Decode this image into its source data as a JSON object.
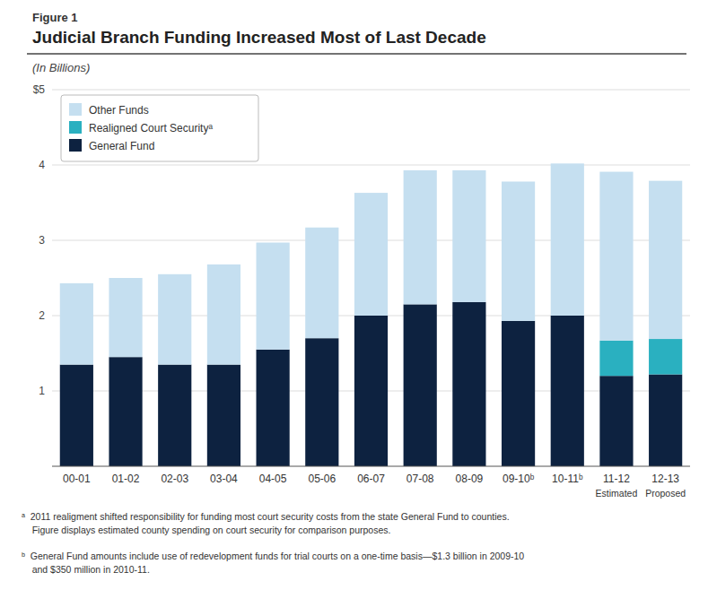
{
  "chart_data": {
    "type": "bar",
    "stacked": true,
    "fig_label": "Figure 1",
    "title": "Judicial Branch Funding Increased Most of Last Decade",
    "subtitle": "(In Billions)",
    "categories": [
      "00-01",
      "01-02",
      "02-03",
      "03-04",
      "04-05",
      "05-06",
      "06-07",
      "07-08",
      "08-09",
      "09-10ᵇ",
      "10-11ᵇ",
      "11-12",
      "12-13"
    ],
    "sublabels": [
      null,
      null,
      null,
      null,
      null,
      null,
      null,
      null,
      null,
      null,
      null,
      "Estimated",
      "Proposed"
    ],
    "series": [
      {
        "name": "General Fund",
        "color": "#0d2240",
        "values": [
          1.35,
          1.45,
          1.35,
          1.35,
          1.55,
          1.7,
          2.0,
          2.15,
          2.18,
          1.93,
          2.0,
          1.2,
          1.22
        ]
      },
      {
        "name": "Realigned Court Securityᵃ",
        "color": "#2ab0c0",
        "values": [
          0.0,
          0.0,
          0.0,
          0.0,
          0.0,
          0.0,
          0.0,
          0.0,
          0.0,
          0.0,
          0.0,
          0.47,
          0.47
        ]
      },
      {
        "name": "Other Funds",
        "color": "#c5dff0",
        "values": [
          1.08,
          1.05,
          1.2,
          1.33,
          1.42,
          1.47,
          1.63,
          1.78,
          1.75,
          1.85,
          2.02,
          2.24,
          2.1
        ]
      }
    ],
    "ylim": [
      0,
      5
    ],
    "yticks": [
      1,
      2,
      3,
      4,
      {
        "value": 5,
        "label": "$5"
      }
    ],
    "grid": true,
    "legend": "upper left",
    "footnotes": [
      "ᵃ  2011 realigment shifted responsibility for funding most court security costs from the state General Fund to counties.\n    Figure displays estimated county spending on court security for comparison purposes.",
      "ᵇ  General Fund amounts include use of redevelopment funds for trial courts on a one-time basis—$1.3 billion in 2009-10\n    and $350 million in 2010-11."
    ]
  }
}
